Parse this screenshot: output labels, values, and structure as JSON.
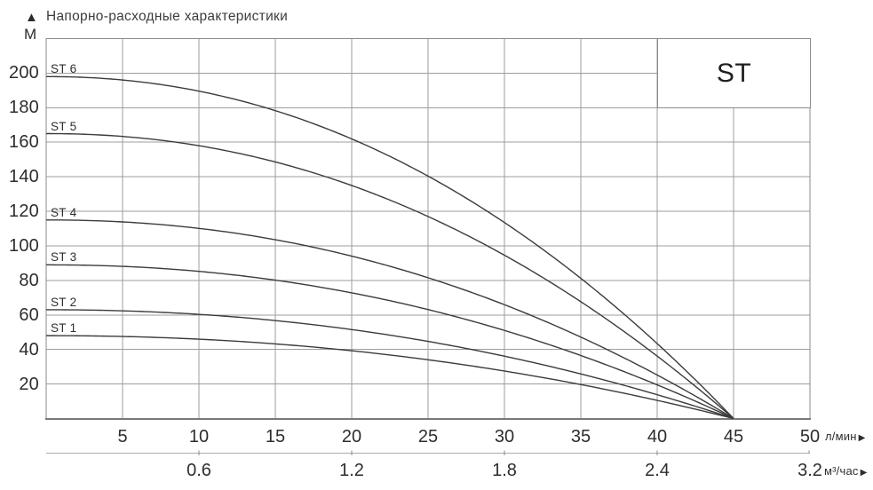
{
  "header": {
    "title": "Напорно-расходные характеристики",
    "y_unit": "М",
    "up_arrow": "▲",
    "right_arrow": "▶"
  },
  "chart_data": {
    "type": "line",
    "title": "Напорно-расходные характеристики",
    "legend_box": "ST",
    "x": {
      "label": "л/мин",
      "min": 0,
      "max": 50,
      "grid_step": 5,
      "ticks": [
        5,
        10,
        15,
        20,
        25,
        30,
        35,
        40,
        45,
        50
      ]
    },
    "x_secondary": {
      "label": "м³/час",
      "ticks": [
        0.6,
        1.2,
        1.8,
        2.4
      ],
      "end_label": "3.2"
    },
    "y": {
      "label": "М",
      "min": 0,
      "max": 220,
      "grid_step": 20,
      "ticks": [
        20,
        40,
        60,
        80,
        100,
        120,
        140,
        160,
        180,
        200
      ]
    },
    "curve_model": {
      "formula": "H = H0 * (1 - (Q/q_max)^k)",
      "k": 2.1,
      "q_max": 45
    },
    "series": [
      {
        "name": "ST 6",
        "shutoff_head_m": 198,
        "points": [
          [
            0,
            198
          ],
          [
            5,
            196.0
          ],
          [
            10,
            189.6
          ],
          [
            15,
            178.3
          ],
          [
            20,
            162.0
          ],
          [
            25,
            140.4
          ],
          [
            30,
            113.4
          ],
          [
            35,
            81.2
          ],
          [
            40,
            43.4
          ],
          [
            45,
            0
          ]
        ]
      },
      {
        "name": "ST 5",
        "shutoff_head_m": 165,
        "points": [
          [
            0,
            165
          ],
          [
            5,
            163.4
          ],
          [
            10,
            158.0
          ],
          [
            15,
            148.6
          ],
          [
            20,
            135.0
          ],
          [
            25,
            117.0
          ],
          [
            30,
            94.5
          ],
          [
            35,
            67.7
          ],
          [
            40,
            36.1
          ],
          [
            45,
            0
          ]
        ]
      },
      {
        "name": "ST 4",
        "shutoff_head_m": 115,
        "points": [
          [
            0,
            115
          ],
          [
            5,
            113.9
          ],
          [
            10,
            110.1
          ],
          [
            15,
            103.5
          ],
          [
            20,
            94.1
          ],
          [
            25,
            81.5
          ],
          [
            30,
            65.9
          ],
          [
            35,
            47.2
          ],
          [
            40,
            25.2
          ],
          [
            45,
            0
          ]
        ]
      },
      {
        "name": "ST 3",
        "shutoff_head_m": 89,
        "points": [
          [
            0,
            89
          ],
          [
            5,
            88.1
          ],
          [
            10,
            85.2
          ],
          [
            15,
            80.1
          ],
          [
            20,
            72.8
          ],
          [
            25,
            63.1
          ],
          [
            30,
            51.0
          ],
          [
            35,
            36.5
          ],
          [
            40,
            19.5
          ],
          [
            45,
            0
          ]
        ]
      },
      {
        "name": "ST 2",
        "shutoff_head_m": 63,
        "points": [
          [
            0,
            63
          ],
          [
            5,
            62.4
          ],
          [
            10,
            60.3
          ],
          [
            15,
            56.7
          ],
          [
            20,
            51.5
          ],
          [
            25,
            44.7
          ],
          [
            30,
            36.1
          ],
          [
            35,
            25.8
          ],
          [
            40,
            13.8
          ],
          [
            45,
            0
          ]
        ]
      },
      {
        "name": "ST 1",
        "shutoff_head_m": 48,
        "points": [
          [
            0,
            48
          ],
          [
            5,
            47.5
          ],
          [
            10,
            46.0
          ],
          [
            15,
            43.2
          ],
          [
            20,
            39.3
          ],
          [
            25,
            34.0
          ],
          [
            30,
            27.5
          ],
          [
            35,
            19.7
          ],
          [
            40,
            10.5
          ],
          [
            45,
            0
          ]
        ]
      }
    ]
  }
}
